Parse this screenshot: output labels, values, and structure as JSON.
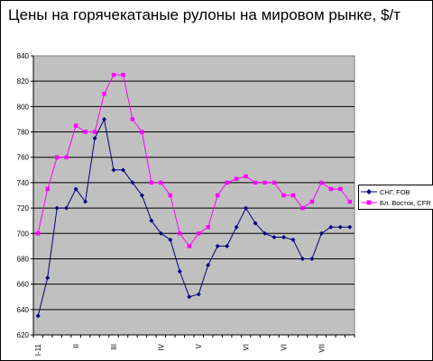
{
  "chart_data": {
    "type": "line",
    "title": "Цены на горячекатаные рулоны на мировом рынке, $/т",
    "xlabel": "",
    "ylabel": "",
    "ylim": [
      620,
      840
    ],
    "yticks": [
      "620",
      "640",
      "660",
      "680",
      "700",
      "720",
      "740",
      "760",
      "780",
      "800",
      "820",
      "840"
    ],
    "xtick_labels": [
      {
        "index": 0,
        "label": "I-11"
      },
      {
        "index": 4,
        "label": "II"
      },
      {
        "index": 8,
        "label": "III"
      },
      {
        "index": 13,
        "label": "IV"
      },
      {
        "index": 17,
        "label": "V"
      },
      {
        "index": 22,
        "label": "VI"
      },
      {
        "index": 26,
        "label": "VI"
      },
      {
        "index": 30,
        "label": "VII"
      }
    ],
    "grid": true,
    "legend_position": "right",
    "colors": {
      "plot_bg": "#c0c0c0",
      "series1": "#000080",
      "series2": "#ff00ff"
    },
    "series": [
      {
        "name": "СНГ, FOB",
        "color": "#000080",
        "marker": "diamond",
        "values": [
          635,
          665,
          720,
          720,
          735,
          725,
          775,
          790,
          750,
          750,
          740,
          730,
          710,
          700,
          695,
          670,
          650,
          652,
          675,
          690,
          690,
          705,
          720,
          708,
          700,
          697,
          697,
          695,
          680,
          680,
          700,
          705,
          705,
          705
        ]
      },
      {
        "name": "Бл. Восток, CFR",
        "color": "#ff00ff",
        "marker": "square",
        "values": [
          700,
          735,
          760,
          760,
          785,
          780,
          780,
          810,
          825,
          825,
          790,
          780,
          740,
          740,
          730,
          700,
          690,
          700,
          705,
          730,
          740,
          743,
          745,
          740,
          740,
          740,
          730,
          730,
          720,
          725,
          740,
          735,
          735,
          725
        ]
      }
    ]
  }
}
